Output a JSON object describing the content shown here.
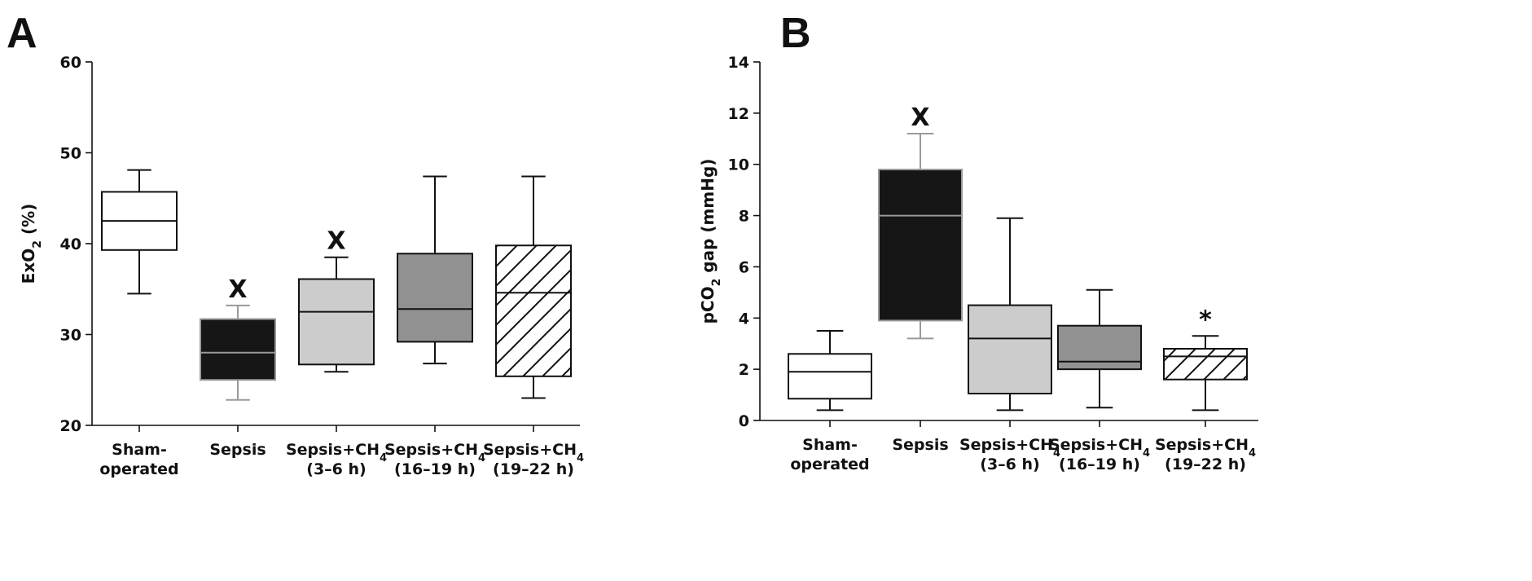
{
  "chart_data": [
    {
      "type": "box",
      "panel": "A",
      "ylabel": "ExO2 (%)",
      "ylabel_parts": {
        "pre": "ExO",
        "sub": "2",
        "post": " (%)"
      },
      "ylim": [
        20,
        60
      ],
      "yticks": [
        20,
        30,
        40,
        50,
        60
      ],
      "categories": [
        {
          "line1": "Sham-",
          "line1_sub": "",
          "line2": "operated"
        },
        {
          "line1": "Sepsis",
          "line1_sub": "",
          "line2": ""
        },
        {
          "line1": "Sepsis+CH",
          "line1_sub": "4",
          "line2": "(3–6 h)"
        },
        {
          "line1": "Sepsis+CH",
          "line1_sub": "4",
          "line2": "(16–19 h)"
        },
        {
          "line1": "Sepsis+CH",
          "line1_sub": "4",
          "line2": "(19–22 h)"
        }
      ],
      "boxes": [
        {
          "min": 34.5,
          "q1": 39.3,
          "median": 42.5,
          "q3": 45.7,
          "max": 48.1,
          "fill": "#ffffff",
          "pattern": "none",
          "medianColor": "#111111",
          "whiskerColor": "#111111",
          "sig": ""
        },
        {
          "min": 22.8,
          "q1": 25.0,
          "median": 28.0,
          "q3": 31.7,
          "max": 33.2,
          "fill": "#161616",
          "pattern": "none",
          "medianColor": "#9a9a9a",
          "whiskerColor": "#9a9a9a",
          "sig": "X"
        },
        {
          "min": 25.9,
          "q1": 26.7,
          "median": 32.5,
          "q3": 36.1,
          "max": 38.5,
          "fill": "#cccccc",
          "pattern": "none",
          "medianColor": "#111111",
          "whiskerColor": "#111111",
          "sig": "X"
        },
        {
          "min": 26.8,
          "q1": 29.2,
          "median": 32.8,
          "q3": 38.9,
          "max": 47.4,
          "fill": "#919191",
          "pattern": "none",
          "medianColor": "#111111",
          "whiskerColor": "#111111",
          "sig": ""
        },
        {
          "min": 23.0,
          "q1": 25.4,
          "median": 34.6,
          "q3": 39.8,
          "max": 47.4,
          "fill": "#ffffff",
          "pattern": "hatch",
          "medianColor": "#111111",
          "whiskerColor": "#111111",
          "sig": ""
        }
      ]
    },
    {
      "type": "box",
      "panel": "B",
      "ylabel": "pCO2 gap (mmHg)",
      "ylabel_parts": {
        "pre": "pCO",
        "sub": "2",
        "post": " gap (mmHg)"
      },
      "ylim": [
        0,
        14
      ],
      "yticks": [
        0,
        2,
        4,
        6,
        8,
        10,
        12,
        14
      ],
      "categories": [
        {
          "line1": "Sham-",
          "line1_sub": "",
          "line2": "operated"
        },
        {
          "line1": "Sepsis",
          "line1_sub": "",
          "line2": ""
        },
        {
          "line1": "Sepsis+CH",
          "line1_sub": "4",
          "line2": "(3–6 h)"
        },
        {
          "line1": "Sepsis+CH",
          "line1_sub": "4",
          "line2": "(16–19 h)"
        },
        {
          "line1": "Sepsis+CH",
          "line1_sub": "4",
          "line2": "(19–22 h)"
        }
      ],
      "boxes": [
        {
          "min": 0.4,
          "q1": 0.85,
          "median": 1.9,
          "q3": 2.6,
          "max": 3.5,
          "fill": "#ffffff",
          "pattern": "none",
          "medianColor": "#111111",
          "whiskerColor": "#111111",
          "sig": ""
        },
        {
          "min": 3.2,
          "q1": 3.9,
          "median": 8.0,
          "q3": 9.8,
          "max": 11.2,
          "fill": "#161616",
          "pattern": "none",
          "medianColor": "#9a9a9a",
          "whiskerColor": "#9a9a9a",
          "sig": "X"
        },
        {
          "min": 0.4,
          "q1": 1.05,
          "median": 3.2,
          "q3": 4.5,
          "max": 7.9,
          "fill": "#cccccc",
          "pattern": "none",
          "medianColor": "#111111",
          "whiskerColor": "#111111",
          "sig": ""
        },
        {
          "min": 0.5,
          "q1": 2.0,
          "median": 2.3,
          "q3": 3.7,
          "max": 5.1,
          "fill": "#919191",
          "pattern": "none",
          "medianColor": "#111111",
          "whiskerColor": "#111111",
          "sig": ""
        },
        {
          "min": 0.4,
          "q1": 1.6,
          "median": 2.5,
          "q3": 2.8,
          "max": 3.3,
          "fill": "#ffffff",
          "pattern": "hatch",
          "medianColor": "#111111",
          "whiskerColor": "#111111",
          "sig": "*"
        }
      ]
    }
  ]
}
